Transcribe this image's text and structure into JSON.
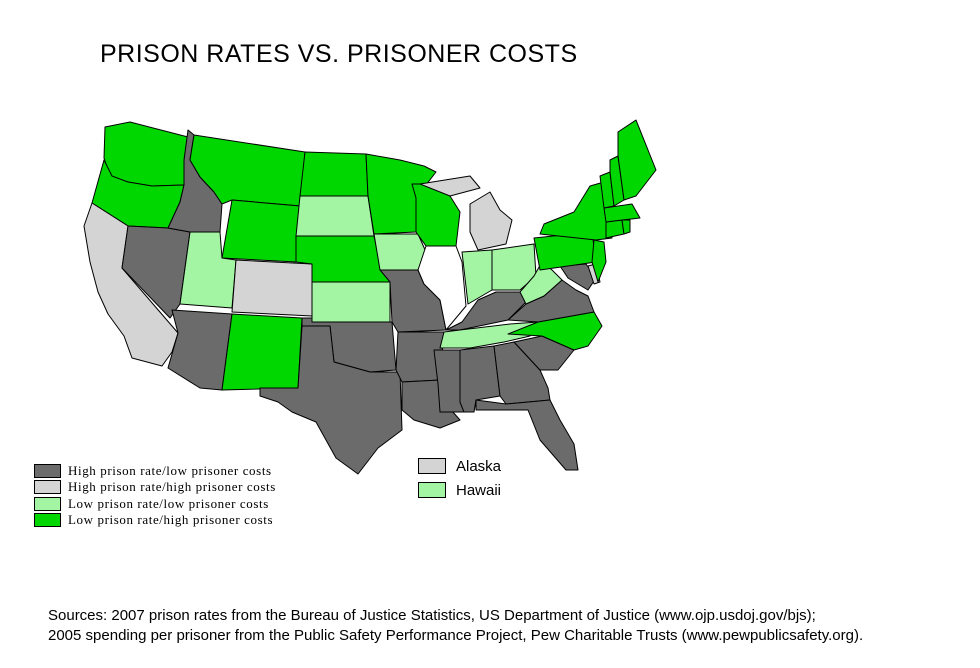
{
  "title": "PRISON RATES VS. PRISONER COSTS",
  "colors": {
    "high_rate_low_cost": "#6b6b6b",
    "high_rate_high_cost": "#d4d4d4",
    "low_rate_low_cost": "#a3f5a3",
    "low_rate_high_cost": "#00d700",
    "no_data": "#ffffff",
    "outline": "#000000"
  },
  "legend": {
    "items": [
      {
        "key": "high_rate_low_cost",
        "label": "High prison rate/low prisoner costs"
      },
      {
        "key": "high_rate_high_cost",
        "label": "High prison rate/high prisoner costs"
      },
      {
        "key": "low_rate_low_cost",
        "label": "Low prison rate/low prisoner costs"
      },
      {
        "key": "low_rate_high_cost",
        "label": "Low prison rate/high prisoner costs"
      }
    ]
  },
  "insets": [
    {
      "label": "Alaska",
      "category": "high_rate_high_cost"
    },
    {
      "label": "Hawaii",
      "category": "low_rate_low_cost"
    }
  ],
  "state_categories": {
    "WA": "low_rate_high_cost",
    "OR": "low_rate_high_cost",
    "CA": "high_rate_high_cost",
    "NV": "high_rate_low_cost",
    "ID": "high_rate_low_cost",
    "MT": "low_rate_high_cost",
    "WY": "low_rate_high_cost",
    "UT": "low_rate_low_cost",
    "CO": "high_rate_high_cost",
    "AZ": "high_rate_low_cost",
    "NM": "low_rate_high_cost",
    "ND": "low_rate_high_cost",
    "SD": "low_rate_low_cost",
    "NE": "low_rate_high_cost",
    "KS": "low_rate_low_cost",
    "OK": "high_rate_low_cost",
    "TX": "high_rate_low_cost",
    "MN": "low_rate_high_cost",
    "IA": "low_rate_low_cost",
    "MO": "high_rate_low_cost",
    "AR": "high_rate_low_cost",
    "LA": "high_rate_low_cost",
    "WI": "low_rate_high_cost",
    "IL": "no_data",
    "MI": "high_rate_high_cost",
    "IN": "low_rate_low_cost",
    "OH": "low_rate_low_cost",
    "KY": "high_rate_low_cost",
    "TN": "low_rate_low_cost",
    "MS": "high_rate_low_cost",
    "AL": "high_rate_low_cost",
    "GA": "high_rate_low_cost",
    "FL": "high_rate_low_cost",
    "SC": "high_rate_low_cost",
    "NC": "low_rate_high_cost",
    "VA": "high_rate_low_cost",
    "WV": "low_rate_low_cost",
    "MD": "high_rate_low_cost",
    "DE": "high_rate_high_cost",
    "PA": "low_rate_high_cost",
    "NJ": "low_rate_high_cost",
    "NY": "low_rate_high_cost",
    "CT": "low_rate_high_cost",
    "RI": "low_rate_high_cost",
    "MA": "low_rate_high_cost",
    "VT": "low_rate_high_cost",
    "NH": "low_rate_high_cost",
    "ME": "low_rate_high_cost"
  },
  "sources": {
    "line1": "Sources: 2007 prison rates from the Bureau of Justice Statistics, US Department of Justice (www.ojp.usdoj.gov/bjs);",
    "line2": "2005 spending per prisoner from the Public Safety Performance Project, Pew Charitable Trusts (www.pewpublicsafety.org)."
  }
}
